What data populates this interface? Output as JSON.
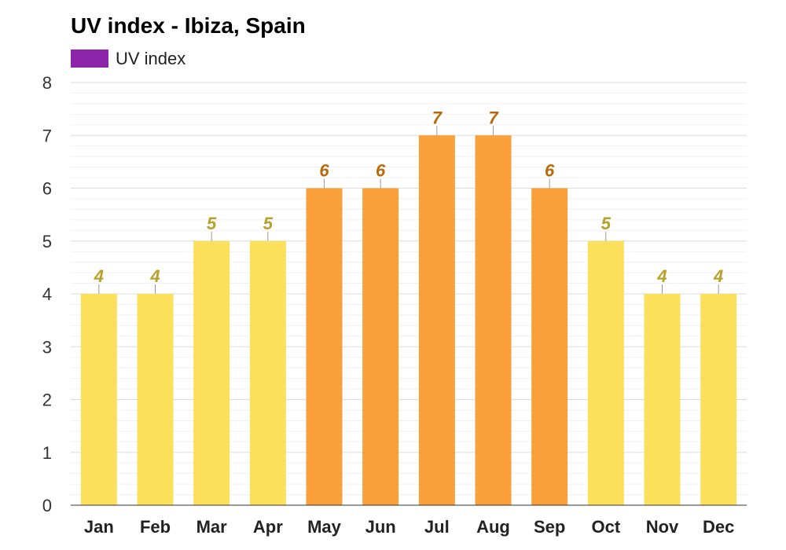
{
  "chart_data": {
    "type": "bar",
    "title": "UV index - Ibiza, Spain",
    "legend": {
      "label": "UV index",
      "color": "#8e24aa",
      "placement": "top-left"
    },
    "categories": [
      "Jan",
      "Feb",
      "Mar",
      "Apr",
      "May",
      "Jun",
      "Jul",
      "Aug",
      "Sep",
      "Oct",
      "Nov",
      "Dec"
    ],
    "series": [
      {
        "name": "UV index",
        "values": [
          4,
          4,
          5,
          5,
          6,
          6,
          7,
          7,
          6,
          5,
          4,
          4
        ]
      }
    ],
    "ylim": [
      0,
      8
    ],
    "yticks": [
      0,
      1,
      2,
      3,
      4,
      5,
      6,
      7,
      8
    ],
    "grid": true,
    "data_labels": true,
    "colors": {
      "low_bar": "#fce05c",
      "high_bar": "#f9a03b",
      "low_label": "#b8a02a",
      "high_label": "#b56a0c",
      "threshold_note": "values 6 and above drawn orange"
    }
  }
}
